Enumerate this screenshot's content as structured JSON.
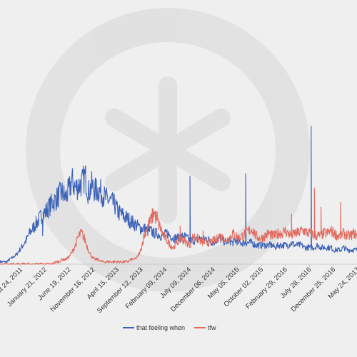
{
  "chart_data": {
    "type": "line",
    "title": "",
    "xlabel": "",
    "ylabel": "",
    "grid": false,
    "legend_position": "bottom-center",
    "x_ticks": [
      "August 24, 2011",
      "January 21, 2012",
      "June 19, 2012",
      "November 16, 2012",
      "April 15, 2013",
      "September 12, 2013",
      "February 09, 2014",
      "July 09, 2014",
      "December 06, 2014",
      "May 05, 2015",
      "October 02, 2015",
      "February 29, 2016",
      "July 28, 2016",
      "December 25, 2016",
      "May 24, 2017"
    ],
    "x_start": "March 2011",
    "x_end": "June 2017",
    "series": [
      {
        "name": "that feeling when",
        "color": "#3c62b8",
        "values": [
          1,
          1,
          1,
          2,
          3,
          4,
          6,
          8,
          10,
          13,
          15,
          17,
          19,
          21,
          22,
          24,
          26,
          27,
          29,
          30,
          28,
          31,
          35,
          32,
          33,
          34,
          37,
          30,
          33,
          31,
          31,
          30,
          28,
          27,
          26,
          25,
          22,
          21,
          20,
          19,
          18,
          17,
          16,
          15,
          15,
          14,
          14,
          13,
          13,
          12,
          12,
          13,
          12,
          11,
          11,
          11,
          12,
          11,
          10,
          10,
          10,
          11,
          10,
          11,
          10,
          9,
          10,
          11,
          10,
          9,
          10,
          9,
          10,
          9,
          9,
          9,
          9,
          9,
          8,
          8,
          8,
          8,
          8,
          8,
          7,
          8,
          8,
          8,
          8,
          9,
          8,
          8,
          8,
          7,
          7,
          7,
          7,
          8,
          7,
          7,
          7,
          7,
          6,
          6,
          6,
          7,
          6,
          6,
          6,
          6
        ],
        "spikes": [
          [
            13,
            12
          ],
          [
            58,
            37
          ],
          [
            75,
            38
          ],
          [
            95,
            58
          ],
          [
            125,
            26
          ]
        ]
      },
      {
        "name": "tfw",
        "color": "#e06b5f",
        "values": [
          0,
          0,
          0,
          0,
          0,
          0,
          0,
          0,
          0,
          0,
          0,
          0,
          0,
          0,
          0,
          0,
          0,
          1,
          1,
          2,
          2,
          3,
          5,
          8,
          12,
          13,
          10,
          6,
          3,
          2,
          2,
          1,
          1,
          1,
          1,
          1,
          1,
          1,
          1,
          1,
          2,
          2,
          3,
          6,
          12,
          16,
          18,
          22,
          18,
          15,
          12,
          10,
          8,
          7,
          9,
          11,
          10,
          9,
          8,
          12,
          11,
          10,
          9,
          9,
          9,
          10,
          10,
          12,
          11,
          10,
          11,
          13,
          12,
          11,
          12,
          13,
          14,
          15,
          12,
          11,
          11,
          12,
          13,
          12,
          12,
          13,
          13,
          14,
          13,
          12,
          13,
          13,
          14,
          14,
          13,
          13,
          12,
          12,
          12,
          13,
          13,
          14,
          13,
          12,
          12,
          13,
          12,
          12,
          13,
          12
        ],
        "spikes": [
          [
            48,
            22
          ],
          [
            55,
            16
          ],
          [
            62,
            14
          ],
          [
            76,
            13
          ],
          [
            83,
            12
          ],
          [
            89,
            21
          ],
          [
            96,
            32
          ],
          [
            98,
            24
          ],
          [
            104,
            26
          ],
          [
            110,
            25
          ],
          [
            112,
            20
          ],
          [
            118,
            30
          ],
          [
            122,
            22
          ],
          [
            126,
            35
          ]
        ]
      }
    ],
    "ylim": [
      0,
      75
    ]
  }
}
